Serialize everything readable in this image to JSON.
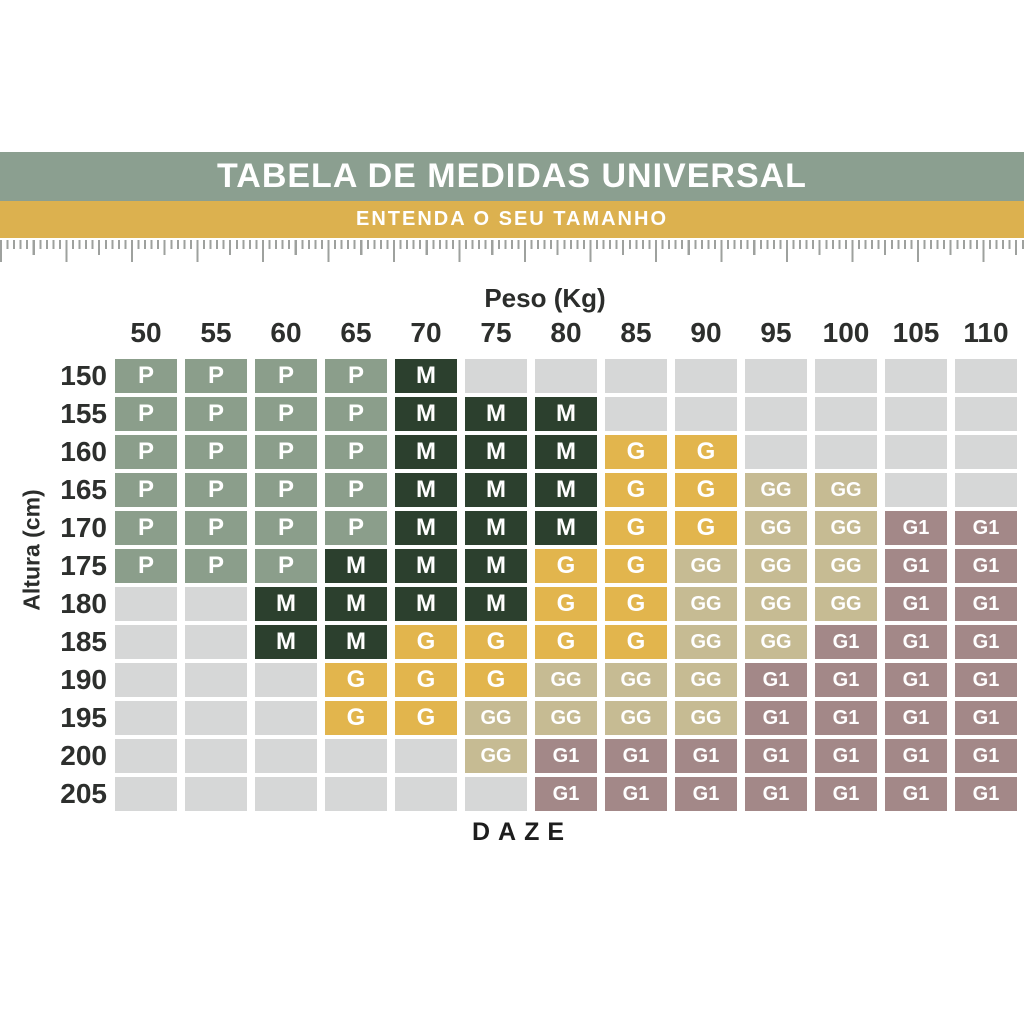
{
  "header": {
    "title": "TABELA DE MEDIDAS UNIVERSAL",
    "subtitle": "ENTENDA O SEU TAMANHO",
    "title_bg": "#8B9F90",
    "subtitle_bg": "#DCB14F"
  },
  "footer": {
    "brand": "DAZE"
  },
  "chart_data": {
    "type": "table",
    "title": "TABELA DE MEDIDAS UNIVERSAL",
    "subtitle": "ENTENDA O SEU TAMANHO",
    "xlabel": "Peso (Kg)",
    "ylabel": "Altura (cm)",
    "columns": [
      "50",
      "55",
      "60",
      "65",
      "70",
      "75",
      "80",
      "85",
      "90",
      "95",
      "100",
      "105",
      "110"
    ],
    "rows": [
      "150",
      "155",
      "160",
      "165",
      "170",
      "175",
      "180",
      "185",
      "190",
      "195",
      "200",
      "205"
    ],
    "cells": [
      [
        "P",
        "P",
        "P",
        "P",
        "M",
        "",
        "",
        "",
        "",
        "",
        "",
        "",
        ""
      ],
      [
        "P",
        "P",
        "P",
        "P",
        "M",
        "M",
        "M",
        "",
        "",
        "",
        "",
        "",
        ""
      ],
      [
        "P",
        "P",
        "P",
        "P",
        "M",
        "M",
        "M",
        "G",
        "G",
        "",
        "",
        "",
        ""
      ],
      [
        "P",
        "P",
        "P",
        "P",
        "M",
        "M",
        "M",
        "G",
        "G",
        "GG",
        "GG",
        "",
        ""
      ],
      [
        "P",
        "P",
        "P",
        "P",
        "M",
        "M",
        "M",
        "G",
        "G",
        "GG",
        "GG",
        "G1",
        "G1"
      ],
      [
        "P",
        "P",
        "P",
        "M",
        "M",
        "M",
        "G",
        "G",
        "GG",
        "GG",
        "GG",
        "G1",
        "G1"
      ],
      [
        "",
        "",
        "M",
        "M",
        "M",
        "M",
        "G",
        "G",
        "GG",
        "GG",
        "GG",
        "G1",
        "G1"
      ],
      [
        "",
        "",
        "M",
        "M",
        "G",
        "G",
        "G",
        "G",
        "GG",
        "GG",
        "G1",
        "G1",
        "G1"
      ],
      [
        "",
        "",
        "",
        "G",
        "G",
        "G",
        "GG",
        "GG",
        "GG",
        "G1",
        "G1",
        "G1",
        "G1"
      ],
      [
        "",
        "",
        "",
        "G",
        "G",
        "GG",
        "GG",
        "GG",
        "GG",
        "G1",
        "G1",
        "G1",
        "G1"
      ],
      [
        "",
        "",
        "",
        "",
        "",
        "GG",
        "G1",
        "G1",
        "G1",
        "G1",
        "G1",
        "G1",
        "G1"
      ],
      [
        "",
        "",
        "",
        "",
        "",
        "",
        "G1",
        "G1",
        "G1",
        "G1",
        "G1",
        "G1",
        "G1"
      ]
    ],
    "size_colors": {
      "P": "#8B9E8B",
      "M": "#2C402E",
      "G": "#E2B54D",
      "GG": "#C6BB93",
      "G1": "#A38888",
      "empty": "#D6D7D7"
    },
    "legend_position": "none",
    "grid": "off"
  }
}
